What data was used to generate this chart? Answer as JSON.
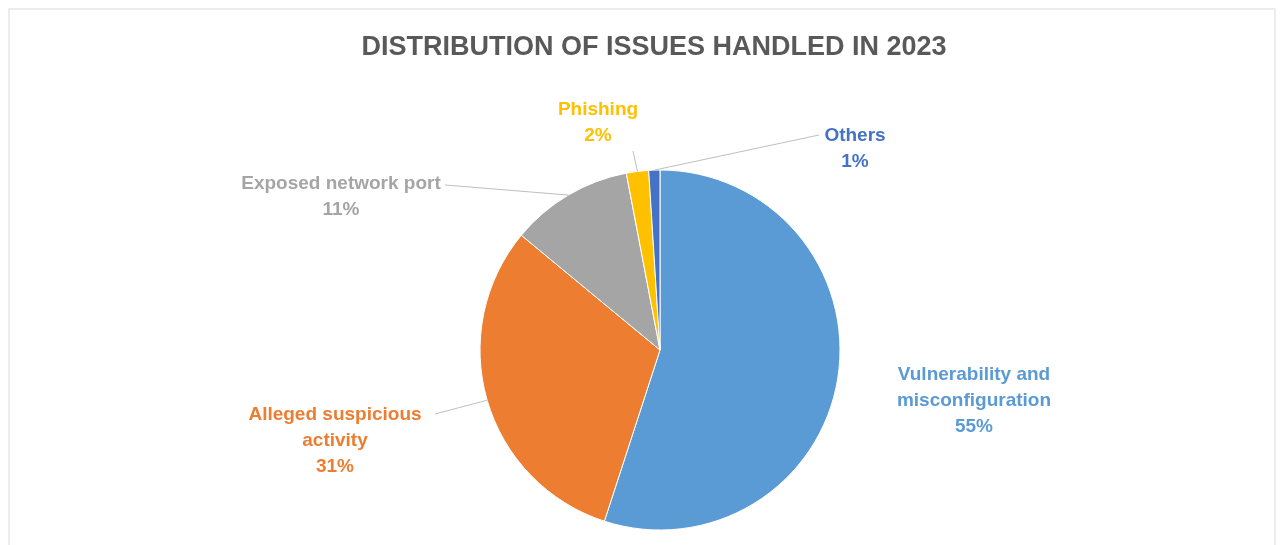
{
  "chart_data": {
    "type": "pie",
    "title": "DISTRIBUTION OF ISSUES HANDLED IN 2023",
    "categories": [
      "Vulnerability and misconfiguration",
      "Alleged suspicious activity",
      "Exposed network port",
      "Phishing",
      "Others"
    ],
    "values": [
      55,
      31,
      11,
      2,
      1
    ],
    "value_labels": [
      "55%",
      "31%",
      "11%",
      "2%",
      "1%"
    ],
    "colors": [
      "#5b9bd5",
      "#ed7d31",
      "#a5a5a5",
      "#ffc000",
      "#4472c4"
    ]
  }
}
